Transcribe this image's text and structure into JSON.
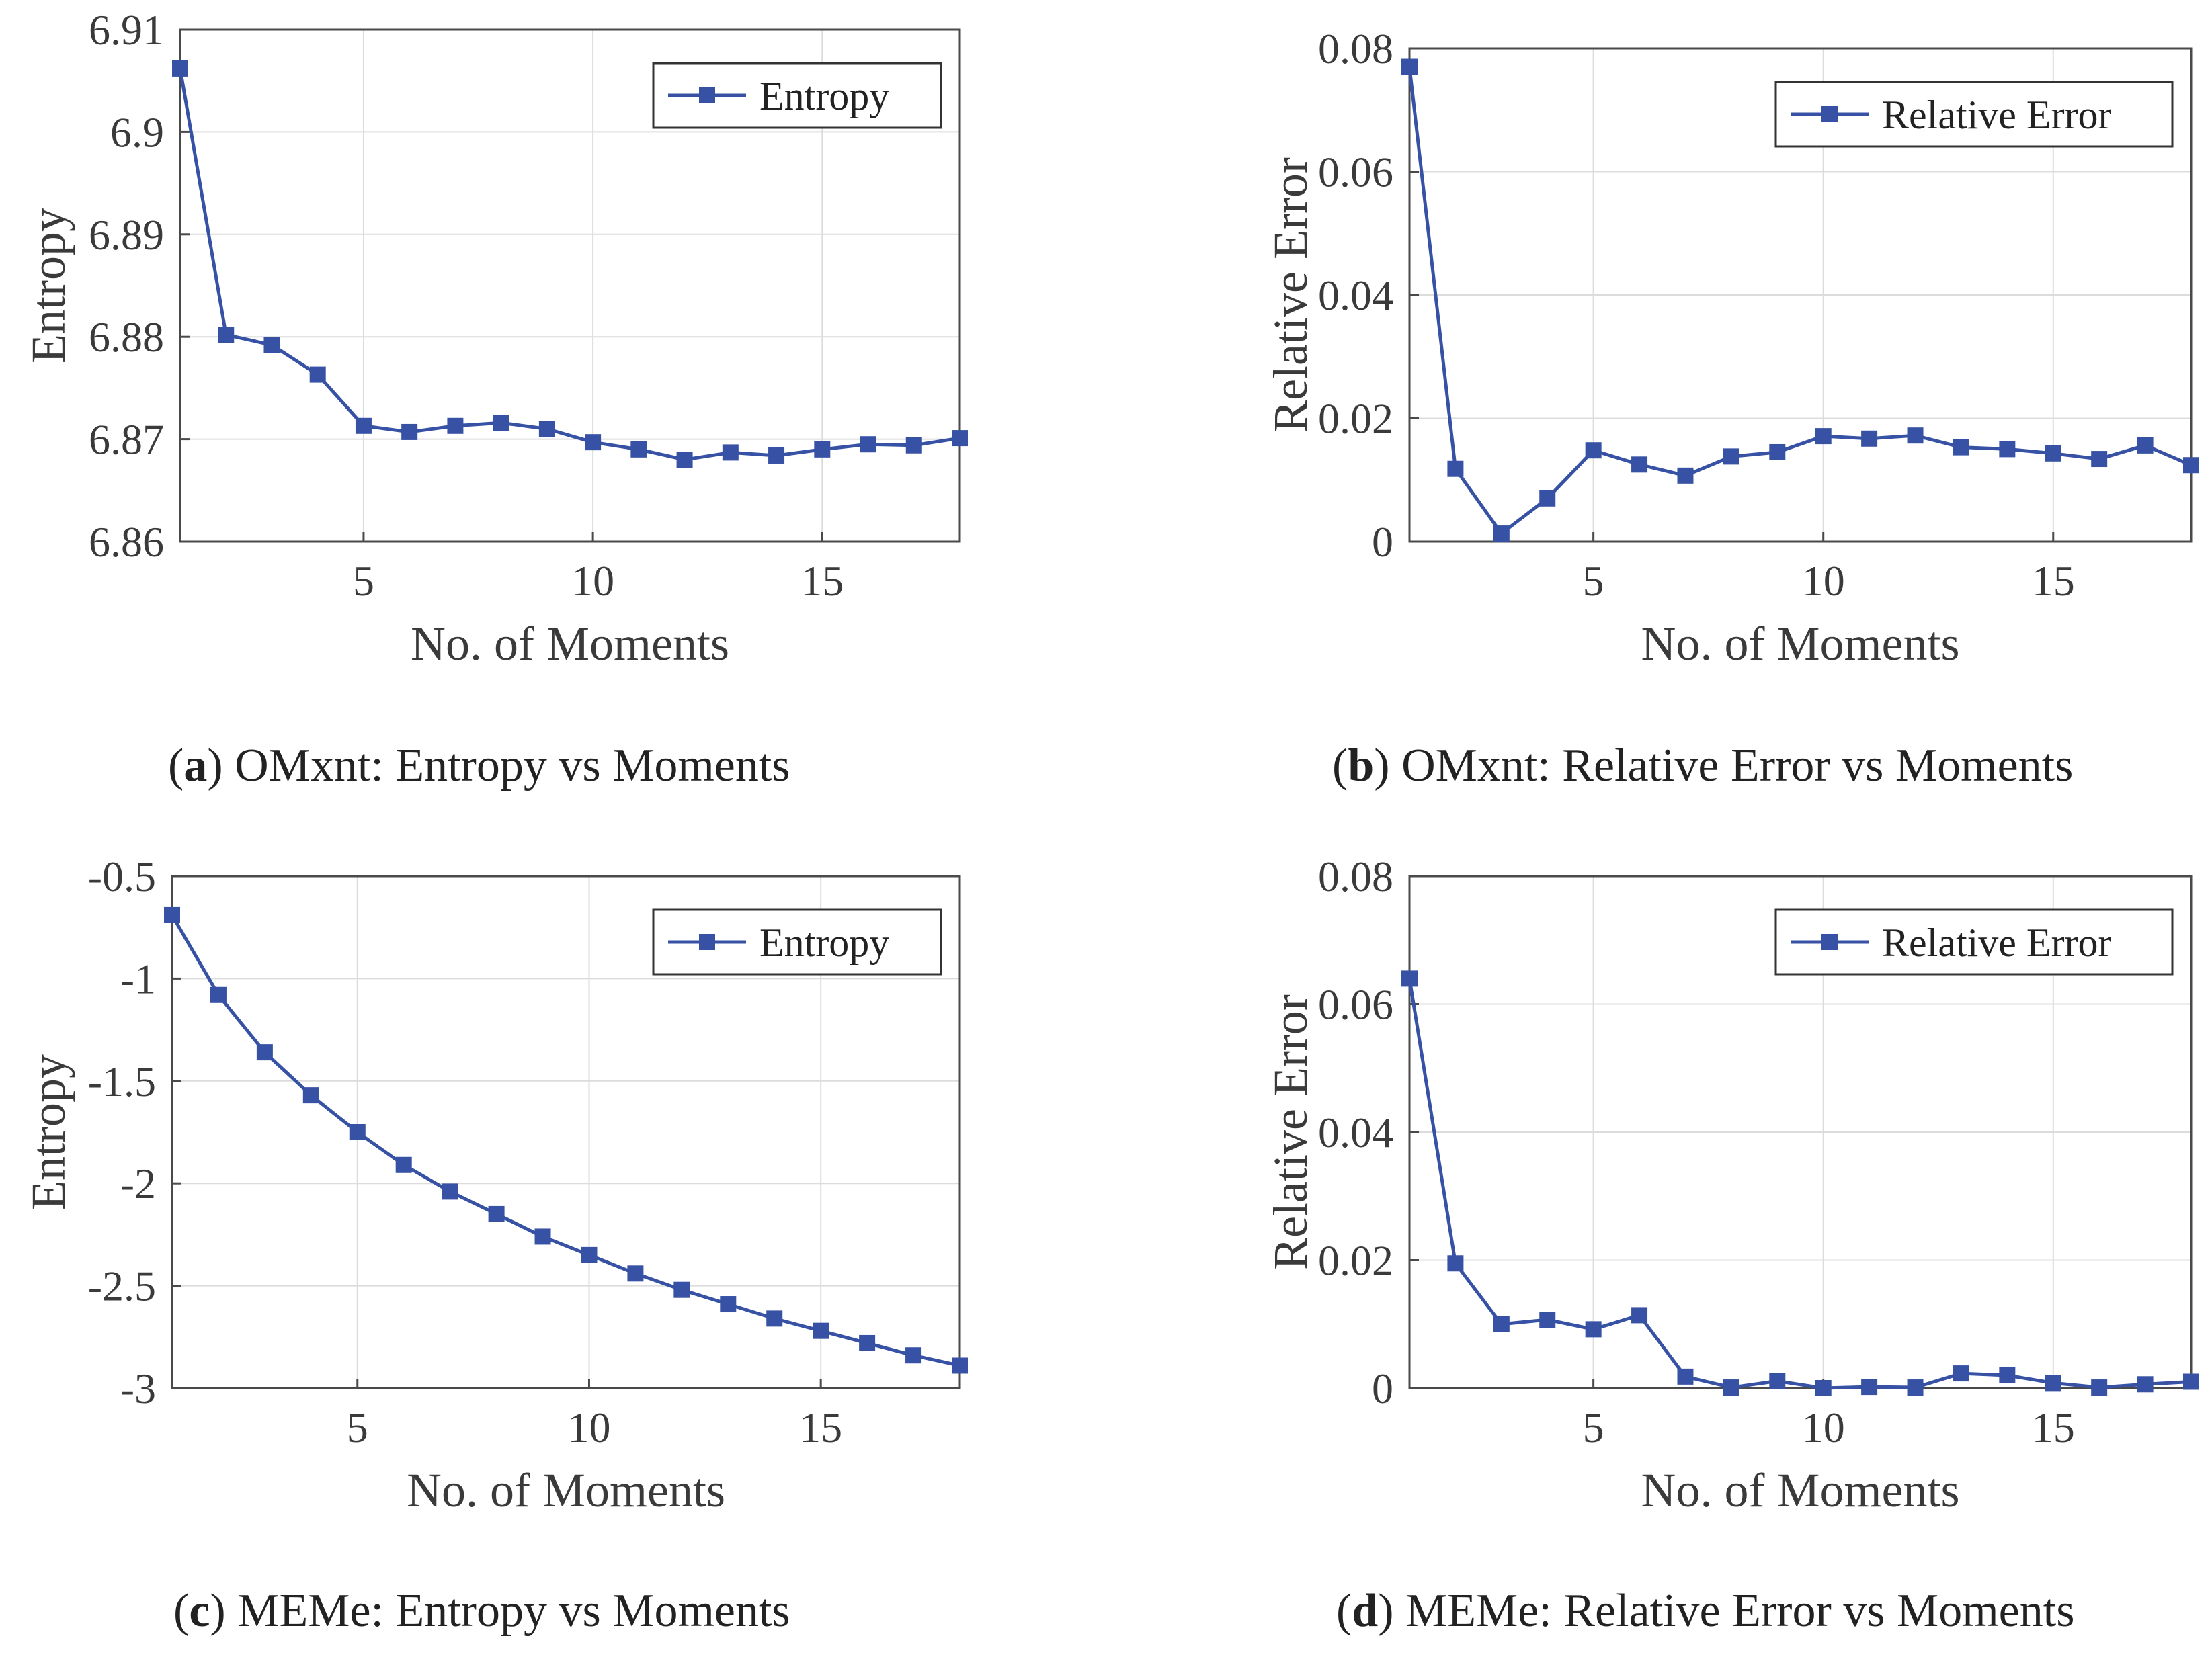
{
  "chart_data": [
    {
      "type": "line",
      "panel": "a",
      "caption_letter": "a",
      "caption_text": "OMxnt: Entropy vs Moments",
      "xlabel": "No. of Moments",
      "ylabel": "Entropy",
      "xlim": [
        1,
        18
      ],
      "ylim": [
        6.86,
        6.91
      ],
      "xticks": [
        5,
        10,
        15
      ],
      "xtick_labels": [
        "5",
        "10",
        "15"
      ],
      "yticks": [
        6.86,
        6.87,
        6.88,
        6.89,
        6.9,
        6.91
      ],
      "ytick_labels": [
        "6.86",
        "6.87",
        "6.88",
        "6.89",
        "6.9",
        "6.91"
      ],
      "legend": "top-right",
      "grid": true,
      "series": [
        {
          "name": "Entropy",
          "x": [
            1,
            2,
            3,
            4,
            5,
            6,
            7,
            8,
            9,
            10,
            11,
            12,
            13,
            14,
            15,
            16,
            17,
            18
          ],
          "values": [
            6.9062,
            6.8802,
            6.8792,
            6.8763,
            6.8713,
            6.8707,
            6.8713,
            6.8716,
            6.871,
            6.8697,
            6.869,
            6.868,
            6.8687,
            6.8684,
            6.869,
            6.8695,
            6.8694,
            6.8701
          ]
        }
      ]
    },
    {
      "type": "line",
      "panel": "b",
      "caption_letter": "b",
      "caption_text": "OMxnt: Relative Error vs Moments",
      "xlabel": "No. of Moments",
      "ylabel": "Relative Error",
      "xlim": [
        1,
        18
      ],
      "ylim": [
        0,
        0.08
      ],
      "xticks": [
        5,
        10,
        15
      ],
      "xtick_labels": [
        "5",
        "10",
        "15"
      ],
      "yticks": [
        0,
        0.02,
        0.04,
        0.06,
        0.08
      ],
      "ytick_labels": [
        "0",
        "0.02",
        "0.04",
        "0.06",
        "0.08"
      ],
      "legend": "top-right",
      "grid": true,
      "series": [
        {
          "name": "Relative Error",
          "x": [
            1,
            2,
            3,
            4,
            5,
            6,
            7,
            8,
            9,
            10,
            11,
            12,
            13,
            14,
            15,
            16,
            17,
            18
          ],
          "values": [
            0.077,
            0.0118,
            0.0013,
            0.007,
            0.0148,
            0.0125,
            0.0107,
            0.0138,
            0.0145,
            0.0171,
            0.0167,
            0.0172,
            0.0153,
            0.015,
            0.0143,
            0.0134,
            0.0156,
            0.0124
          ]
        }
      ]
    },
    {
      "type": "line",
      "panel": "c",
      "caption_letter": "c",
      "caption_text": "MEMe: Entropy vs Moments",
      "xlabel": "No. of Moments",
      "ylabel": "Entropy",
      "xlim": [
        1,
        18
      ],
      "ylim": [
        -3,
        -0.5
      ],
      "xticks": [
        5,
        10,
        15
      ],
      "xtick_labels": [
        "5",
        "10",
        "15"
      ],
      "yticks": [
        -3,
        -2.5,
        -2,
        -1.5,
        -1,
        -0.5
      ],
      "ytick_labels": [
        "-3",
        "-2.5",
        "-2",
        "-1.5",
        "-1",
        "-0.5"
      ],
      "legend": "top-right",
      "grid": true,
      "series": [
        {
          "name": "Entropy",
          "x": [
            1,
            2,
            3,
            4,
            5,
            6,
            7,
            8,
            9,
            10,
            11,
            12,
            13,
            14,
            15,
            16,
            17,
            18
          ],
          "values": [
            -0.69,
            -1.08,
            -1.36,
            -1.57,
            -1.75,
            -1.91,
            -2.04,
            -2.15,
            -2.26,
            -2.35,
            -2.44,
            -2.52,
            -2.59,
            -2.66,
            -2.72,
            -2.78,
            -2.84,
            -2.89
          ]
        }
      ]
    },
    {
      "type": "line",
      "panel": "d",
      "caption_letter": "d",
      "caption_text": "MEMe: Relative Error vs Moments",
      "xlabel": "No. of Moments",
      "ylabel": "Relative Error",
      "xlim": [
        1,
        18
      ],
      "ylim": [
        0,
        0.08
      ],
      "xticks": [
        5,
        10,
        15
      ],
      "xtick_labels": [
        "5",
        "10",
        "15"
      ],
      "yticks": [
        0,
        0.02,
        0.04,
        0.06,
        0.08
      ],
      "ytick_labels": [
        "0",
        "0.02",
        "0.04",
        "0.06",
        "0.08"
      ],
      "legend": "top-right",
      "grid": true,
      "series": [
        {
          "name": "Relative Error",
          "x": [
            1,
            2,
            3,
            4,
            5,
            6,
            7,
            8,
            9,
            10,
            11,
            12,
            13,
            14,
            15,
            16,
            17,
            18
          ],
          "values": [
            0.064,
            0.0195,
            0.01,
            0.0107,
            0.0092,
            0.0114,
            0.0018,
            0.0001,
            0.0011,
            0.0,
            0.0002,
            0.0001,
            0.0023,
            0.002,
            0.0008,
            0.0001,
            0.0006,
            0.001
          ]
        }
      ]
    }
  ],
  "colors": {
    "line": "#3752a5",
    "grid": "#dcdcdc",
    "axis": "#4a4a4a"
  }
}
